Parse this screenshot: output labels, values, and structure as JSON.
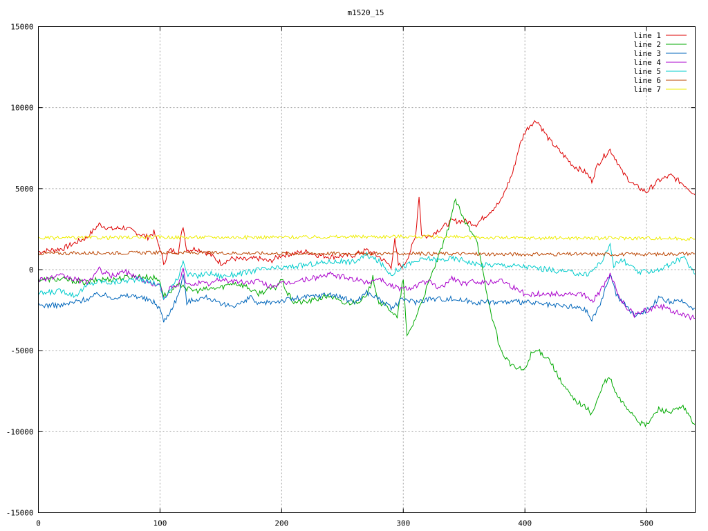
{
  "chart_data": {
    "type": "line",
    "title": "m1520_15",
    "xlabel": "",
    "ylabel": "",
    "xlim": [
      0,
      540
    ],
    "ylim": [
      -15000,
      15000
    ],
    "xticks": [
      0,
      100,
      200,
      300,
      400,
      500
    ],
    "yticks": [
      -15000,
      -10000,
      -5000,
      0,
      5000,
      10000,
      15000
    ],
    "grid": true,
    "legend_position": "top-right",
    "series": [
      {
        "name": "line 1",
        "color": "#dd0000",
        "x": [
          0,
          20,
          40,
          50,
          60,
          70,
          80,
          90,
          95,
          100,
          103,
          108,
          115,
          119,
          122,
          130,
          140,
          150,
          160,
          170,
          180,
          190,
          200,
          210,
          220,
          230,
          240,
          260,
          270,
          280,
          290,
          293,
          296,
          300,
          305,
          310,
          313,
          315,
          320,
          330,
          340,
          350,
          360,
          370,
          380,
          390,
          395,
          400,
          405,
          410,
          415,
          420,
          430,
          440,
          450,
          455,
          460,
          465,
          470,
          475,
          480,
          490,
          500,
          510,
          520,
          530,
          535,
          540
        ],
        "y": [
          1100,
          1300,
          2000,
          2800,
          2500,
          2600,
          2300,
          2000,
          2300,
          1300,
          400,
          1200,
          1100,
          2700,
          1200,
          1300,
          1000,
          400,
          700,
          600,
          700,
          500,
          900,
          1000,
          1100,
          900,
          800,
          900,
          1200,
          800,
          200,
          1800,
          300,
          200,
          1000,
          2000,
          4600,
          2200,
          2000,
          2500,
          3000,
          3000,
          2800,
          3500,
          4200,
          6000,
          7500,
          8500,
          9000,
          9200,
          8600,
          8000,
          7200,
          6400,
          6000,
          5500,
          6500,
          7000,
          7400,
          6800,
          6000,
          5200,
          4800,
          5500,
          5800,
          5300,
          5000,
          4600
        ]
      },
      {
        "name": "line 2",
        "color": "#00aa00",
        "x": [
          0,
          20,
          40,
          50,
          60,
          80,
          95,
          100,
          103,
          108,
          115,
          119,
          122,
          130,
          140,
          150,
          160,
          170,
          180,
          190,
          195,
          200,
          205,
          210,
          220,
          230,
          240,
          250,
          260,
          270,
          275,
          280,
          290,
          295,
          300,
          303,
          310,
          320,
          330,
          335,
          340,
          343,
          350,
          360,
          370,
          380,
          390,
          400,
          405,
          410,
          420,
          430,
          440,
          450,
          455,
          460,
          465,
          470,
          475,
          480,
          490,
          495,
          500,
          510,
          520,
          530,
          540
        ],
        "y": [
          -600,
          -600,
          -800,
          -600,
          -600,
          -400,
          -500,
          -700,
          -1600,
          -1400,
          -1000,
          -900,
          -1200,
          -1300,
          -1200,
          -1100,
          -800,
          -1000,
          -1500,
          -1200,
          -1100,
          -600,
          -1500,
          -2000,
          -2000,
          -1800,
          -1600,
          -2100,
          -2000,
          -1700,
          -500,
          -2000,
          -2500,
          -3000,
          -500,
          -4200,
          -3000,
          -1000,
          1000,
          2000,
          3500,
          4300,
          3000,
          2000,
          -2000,
          -5000,
          -6000,
          -6200,
          -5200,
          -5000,
          -5500,
          -7000,
          -8000,
          -8500,
          -8900,
          -8000,
          -7000,
          -6700,
          -7700,
          -8200,
          -9000,
          -9500,
          -9600,
          -8600,
          -8800,
          -8500,
          -9600
        ]
      },
      {
        "name": "line 3",
        "color": "#0066bb",
        "x": [
          0,
          20,
          40,
          50,
          60,
          80,
          95,
          100,
          103,
          108,
          115,
          119,
          122,
          130,
          140,
          150,
          160,
          170,
          175,
          180,
          190,
          200,
          220,
          240,
          260,
          270,
          280,
          290,
          300,
          310,
          320,
          340,
          360,
          380,
          400,
          420,
          440,
          450,
          455,
          460,
          465,
          470,
          475,
          480,
          490,
          500,
          510,
          520,
          530,
          540
        ],
        "y": [
          -2200,
          -2200,
          -1800,
          -1500,
          -1700,
          -1600,
          -2000,
          -2400,
          -3200,
          -2600,
          -1600,
          -300,
          -2000,
          -1800,
          -1700,
          -2200,
          -2200,
          -2000,
          -1600,
          -2200,
          -2000,
          -1900,
          -1700,
          -1500,
          -2000,
          -1400,
          -1800,
          -2400,
          -1800,
          -2000,
          -1800,
          -1800,
          -2000,
          -2000,
          -2000,
          -2200,
          -2300,
          -2500,
          -3100,
          -2400,
          -1500,
          -200,
          -1500,
          -2000,
          -2800,
          -2500,
          -1800,
          -2000,
          -2000,
          -2400
        ]
      },
      {
        "name": "line 4",
        "color": "#aa00cc",
        "x": [
          0,
          20,
          40,
          50,
          60,
          70,
          80,
          90,
          95,
          100,
          103,
          108,
          115,
          119,
          122,
          130,
          140,
          150,
          160,
          170,
          180,
          190,
          200,
          220,
          240,
          260,
          270,
          280,
          290,
          300,
          310,
          320,
          330,
          340,
          350,
          360,
          370,
          380,
          400,
          420,
          440,
          450,
          455,
          460,
          465,
          470,
          475,
          480,
          490,
          500,
          510,
          520,
          530,
          540
        ],
        "y": [
          -600,
          -400,
          -800,
          0,
          -400,
          -100,
          -400,
          -800,
          -900,
          -1000,
          -1800,
          -1200,
          -1000,
          0,
          -1000,
          -800,
          -900,
          -600,
          -700,
          -800,
          -700,
          -1000,
          -900,
          -600,
          -300,
          -600,
          -800,
          -500,
          -1000,
          -1200,
          -1000,
          -700,
          -1200,
          -500,
          -900,
          -700,
          -800,
          -600,
          -1500,
          -1500,
          -1500,
          -1600,
          -2000,
          -1500,
          -1000,
          -300,
          -1200,
          -2000,
          -2800,
          -2500,
          -2200,
          -2500,
          -2800,
          -3000
        ]
      },
      {
        "name": "line 5",
        "color": "#00cccc",
        "x": [
          0,
          20,
          30,
          40,
          50,
          60,
          80,
          95,
          100,
          103,
          108,
          115,
          119,
          122,
          130,
          140,
          150,
          160,
          170,
          180,
          200,
          220,
          240,
          260,
          270,
          280,
          290,
          295,
          300,
          310,
          320,
          330,
          340,
          350,
          360,
          380,
          400,
          420,
          440,
          450,
          455,
          460,
          465,
          470,
          473,
          480,
          490,
          495,
          500,
          510,
          520,
          530,
          540
        ],
        "y": [
          -1500,
          -1300,
          -1600,
          -1000,
          -700,
          -800,
          -600,
          -800,
          -1000,
          -1800,
          -1300,
          -500,
          700,
          -300,
          -400,
          -200,
          -400,
          -300,
          -200,
          0,
          100,
          300,
          500,
          500,
          900,
          500,
          -300,
          0,
          200,
          500,
          700,
          600,
          700,
          600,
          300,
          300,
          200,
          0,
          -200,
          -300,
          -100,
          300,
          700,
          1600,
          300,
          600,
          0,
          -200,
          -100,
          0,
          300,
          800,
          -300
        ]
      },
      {
        "name": "line 6",
        "color": "#bb4400",
        "x": [
          0,
          100,
          200,
          300,
          400,
          500,
          540
        ],
        "y": [
          1000,
          1050,
          1000,
          1000,
          950,
          950,
          1000
        ]
      },
      {
        "name": "line 7",
        "color": "#eeee00",
        "x": [
          0,
          100,
          200,
          300,
          400,
          500,
          540
        ],
        "y": [
          1950,
          2000,
          2000,
          2050,
          1950,
          1950,
          1900
        ]
      }
    ]
  }
}
